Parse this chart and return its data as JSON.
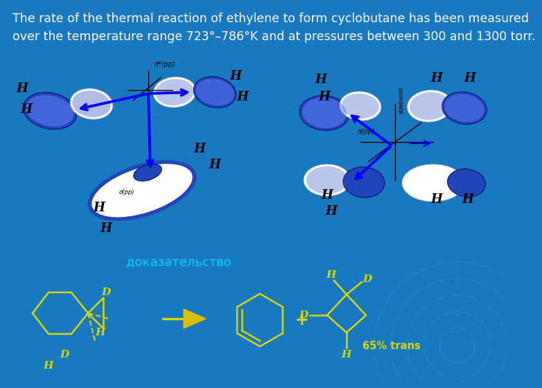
{
  "bg_color": "#1878c0",
  "title_text": "The rate of the thermal reaction of ethylene to form cyclobutane has been measured\nover the temperature range 723°–786°K and at pressures between 300 and 1300 torr.",
  "title_color": "white",
  "title_fontsize": 12.5,
  "proof_text": "доказательство",
  "proof_color": "#00d4ff",
  "proof_fontsize": 13,
  "yellow_color": "#d8d800",
  "arrow_color": "#d8c000",
  "plus_color": "#d8d800",
  "trans_text": "65% trans",
  "orb_blue": "#2244bb",
  "orb_blue_light": "#4466dd",
  "orb_white": "#ffffff",
  "label_H_color": "black",
  "pi_star_label": "π*(pp)",
  "pi_label": "π(pp)",
  "sigma_label": "σ(pp)",
  "sidebands_label": "sidebands"
}
